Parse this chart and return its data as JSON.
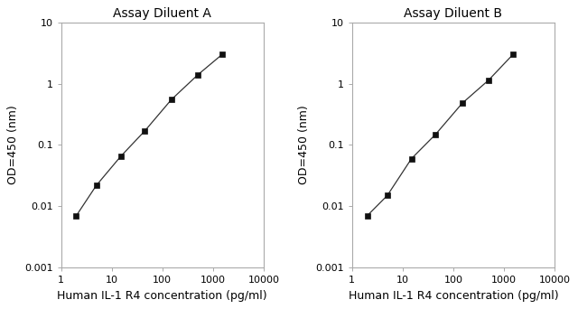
{
  "panel_A": {
    "title": "Assay Diluent A",
    "x_data": [
      2,
      5,
      15,
      45,
      150,
      500,
      1500
    ],
    "y_data": [
      0.007,
      0.022,
      0.065,
      0.17,
      0.55,
      1.4,
      3.0
    ]
  },
  "panel_B": {
    "title": "Assay Diluent B",
    "x_data": [
      2,
      5,
      15,
      45,
      150,
      500,
      1500
    ],
    "y_data": [
      0.007,
      0.015,
      0.06,
      0.15,
      0.48,
      1.15,
      3.0
    ]
  },
  "xlabel": "Human IL-1 R4 concentration (pg/ml)",
  "ylabel": "OD=450 (nm)",
  "xlim": [
    1,
    10000
  ],
  "ylim": [
    0.001,
    10
  ],
  "xticks": [
    1,
    10,
    100,
    1000,
    10000
  ],
  "xticklabels": [
    "1",
    "10",
    "100",
    "1000",
    "10000"
  ],
  "yticks": [
    0.001,
    0.01,
    0.1,
    1,
    10
  ],
  "yticklabels": [
    "0.001",
    "0.01",
    "0.1",
    "1",
    "10"
  ],
  "line_color": "#333333",
  "marker_color": "#111111",
  "bg_color": "#ffffff",
  "spine_color": "#aaaaaa",
  "title_fontsize": 10,
  "label_fontsize": 9,
  "tick_fontsize": 8
}
